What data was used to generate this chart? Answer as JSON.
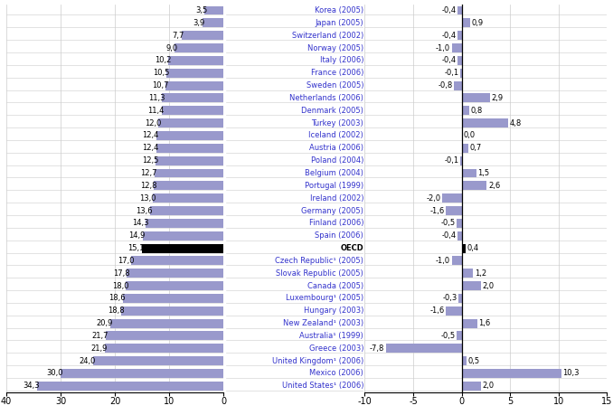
{
  "countries": [
    "Korea (2005)",
    "Japan (2005)",
    "Switzerland (2002)",
    "Norway (2005)",
    "Italy (2006)",
    "France (2006)",
    "Sweden (2005)",
    "Netherlands (2006)",
    "Denmark (2005)",
    "Turkey (2003)",
    "Iceland (2002)",
    "Austria (2006)",
    "Poland (2004)",
    "Belgium (2004)",
    "Portugal (1999)",
    "Ireland (2002)",
    "Germany (2005)",
    "Finland (2006)",
    "Spain (2006)",
    "OECD",
    "Czech Republic¹ (2005)",
    "Slovak Republic (2005)",
    "Canada (2005)",
    "Luxembourg¹ (2005)",
    "Hungary (2003)",
    "New Zealand¹ (2003)",
    "Australia¹ (1999)",
    "Greece (2003)",
    "United Kingdom¹ (2006)",
    "Mexico (2006)",
    "United States¹ (2006)"
  ],
  "left_values": [
    3.5,
    3.9,
    7.7,
    9.0,
    10.2,
    10.5,
    10.7,
    11.3,
    11.4,
    12.0,
    12.4,
    12.4,
    12.5,
    12.7,
    12.8,
    13.0,
    13.6,
    14.3,
    14.9,
    15.1,
    17.0,
    17.8,
    18.0,
    18.6,
    18.8,
    20.9,
    21.7,
    21.9,
    24.0,
    30.0,
    34.3
  ],
  "right_values": [
    -0.4,
    0.9,
    -0.4,
    -1.0,
    -0.4,
    -0.1,
    -0.8,
    2.9,
    0.8,
    4.8,
    0.0,
    0.7,
    -0.1,
    1.5,
    2.6,
    -2.0,
    -1.6,
    -0.5,
    -0.4,
    0.4,
    -1.0,
    1.2,
    2.0,
    -0.3,
    -1.6,
    1.6,
    -0.5,
    -7.8,
    0.5,
    10.3,
    2.0
  ],
  "oecd_index": 19,
  "bar_color": "#9999cc",
  "oecd_color": "#000000",
  "label_color_normal": "#3333cc",
  "label_color_oecd": "#000000",
  "left_xticks": [
    40,
    30,
    20,
    10,
    0
  ],
  "right_xticks": [
    -10,
    -5,
    0,
    5,
    10,
    15
  ]
}
